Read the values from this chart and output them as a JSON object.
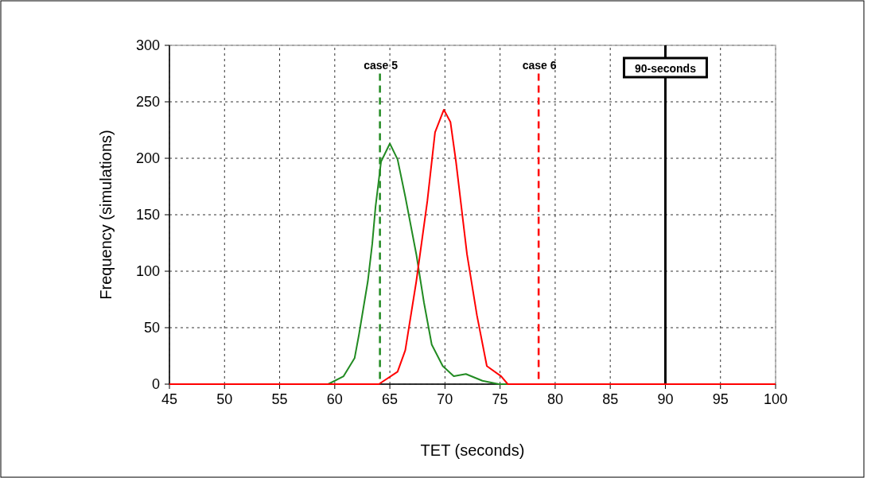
{
  "chart_data": {
    "type": "line",
    "xlabel": "TET (seconds)",
    "ylabel": "Frequency (simulations)",
    "xlim": [
      45,
      100
    ],
    "xticks": [
      45,
      50,
      55,
      60,
      65,
      70,
      75,
      80,
      85,
      90,
      95,
      100
    ],
    "ylim": [
      0,
      300
    ],
    "yticks": [
      0,
      50,
      100,
      150,
      200,
      250,
      300
    ],
    "grid": true,
    "series": [
      {
        "color": "#228b22",
        "x": [
          45,
          59.4,
          60.8,
          61.8,
          62.2,
          63,
          63.4,
          63.7,
          64.2,
          65,
          65.7,
          66.4,
          67.4,
          68.1,
          68.8,
          69.8,
          70.8,
          71.9,
          73.4,
          74.9,
          77,
          100
        ],
        "values": [
          0,
          0,
          7,
          23,
          44,
          91,
          124,
          157,
          197,
          213,
          199,
          166,
          115,
          72,
          35,
          16,
          7,
          9,
          3,
          0,
          0,
          0
        ]
      },
      {
        "color": "#ff0000",
        "x": [
          45,
          64,
          65.7,
          66.4,
          67.4,
          68.4,
          69.1,
          69.9,
          70.5,
          71,
          72,
          72.9,
          73.8,
          75.1,
          75.7,
          100
        ],
        "values": [
          0,
          0,
          11,
          30,
          91,
          162,
          223,
          243,
          232,
          197,
          115,
          61,
          16,
          7,
          0,
          0
        ]
      }
    ],
    "ref_lines": [
      {
        "axis": "x",
        "value": 64.1,
        "label": "case 5",
        "color": "#228b22",
        "line_style": "dashed"
      },
      {
        "axis": "x",
        "value": 78.5,
        "label": "case 6",
        "color": "#ff0000",
        "line_style": "dashed"
      },
      {
        "axis": "x",
        "value": 90,
        "label": "90-seconds",
        "color": "#000000",
        "line_style": "solid"
      }
    ]
  }
}
